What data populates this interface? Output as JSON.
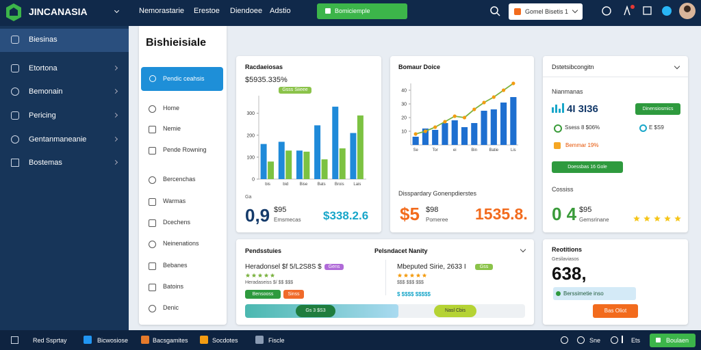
{
  "topbar": {
    "logo": "JINCANASIA",
    "nav": [
      "Nemorastarie",
      "Erestoe",
      "Diendoee",
      "Adstio"
    ],
    "action": "Bomiciemple",
    "dropdown": "Gomel Bisetis 1"
  },
  "sidebar": {
    "items": [
      "Biesinas",
      "Etortona",
      "Bemonain",
      "Pericing",
      "Gentanmaneanie",
      "Bostemas"
    ]
  },
  "panel": {
    "title": "Bishieisiale",
    "button": "Pendic ceahsis",
    "items": [
      "Home",
      "Nemie",
      "Pende Rowning",
      "Bercenchas",
      "Warmas",
      "Dcechens",
      "Neinenations",
      "Bebanes",
      "Batoins",
      "Denic"
    ]
  },
  "card1": {
    "headline": "$5935.335%",
    "pill": "Gsss Siieee",
    "caption": "Ga",
    "big": "0,9",
    "stat": "$95",
    "stat_label": "Emsmecas",
    "accent": "$338.2.6"
  },
  "card2": {
    "caption": "Disspardary Gonenpdierstes",
    "big": "$5",
    "stat": "$98",
    "stat_label": "Pomeree",
    "accent": "1535.8."
  },
  "card3": {
    "title": "Dstetsibcongitn",
    "subtitle": "Nianmanas",
    "metric": "4I 3I36",
    "button": "Dinensiosmics",
    "row1": "Ssess 8 $06%",
    "row1b": "E $S9",
    "row2": "Bemmar 19%",
    "bar": "Doessbas 16 Gole",
    "caption": "Cossiss",
    "big": "0 4",
    "stat": "$95",
    "stat_label": "Gemsrinane"
  },
  "card4": {
    "title": "Pendsstuies",
    "title2": "Pelsndacet Nanity",
    "left_heading": "Heradonsel $f 5/L2S8S $",
    "left_pill": "Gens",
    "left_text": "Heradaseiss $/ $$ $$$",
    "left_btn1": "Bensooss",
    "left_btn2": "Sinss",
    "right_heading": "Mbeputed Sirie, 2633 I",
    "right_pill": "Gss",
    "right_text": "$$$ $$$ $$$",
    "right_accent": "$ $$$$ $$$$$",
    "progress1": "Gs 3 $S3",
    "progress2": "Nasl Cbis"
  },
  "card5": {
    "title": "Reotitions",
    "subtitle": "Gesilaviasos",
    "big": "638,",
    "pill": "Berssimetie inso",
    "button": "Bas Oliot"
  },
  "taskbar": {
    "items": [
      "Red Ssprtay",
      "Bicwosiose",
      "Bacsgamites",
      "Socdotes",
      "Fiscle"
    ],
    "right": [
      "Sne",
      "Ets"
    ],
    "button": "Boulaen"
  },
  "chart_data": [
    {
      "type": "bar",
      "title": "Racdaeiosas",
      "categories": [
        "bis",
        "bid",
        "Bise",
        "Bats",
        "Brois",
        "Lais"
      ],
      "series": [
        {
          "color": "#1f8ad9",
          "values": [
            160,
            170,
            130,
            245,
            330,
            210
          ]
        },
        {
          "color": "#7cc242",
          "values": [
            80,
            130,
            125,
            90,
            140,
            290
          ]
        }
      ],
      "ylim": [
        0,
        380
      ],
      "yticks": [
        0,
        100,
        200,
        300
      ]
    },
    {
      "type": "combo",
      "title": "Bomaur Doice",
      "categories": [
        "Se",
        null,
        "Tor",
        null,
        "ei",
        null,
        "Bin",
        null,
        "Batie",
        null,
        "Lis"
      ],
      "series": [
        {
          "kind": "bar",
          "color": "#1e6fd0",
          "values": [
            6,
            12,
            11,
            16,
            18,
            13,
            16,
            25,
            26,
            31,
            35
          ]
        },
        {
          "kind": "line",
          "color": "#7cb342",
          "marker_color": "#f39c12",
          "values": [
            8,
            10,
            13,
            17,
            21,
            20,
            26,
            31,
            35,
            40,
            45
          ]
        }
      ],
      "ylim": [
        0,
        45
      ],
      "yticks": [
        10,
        20,
        30,
        40
      ]
    }
  ]
}
